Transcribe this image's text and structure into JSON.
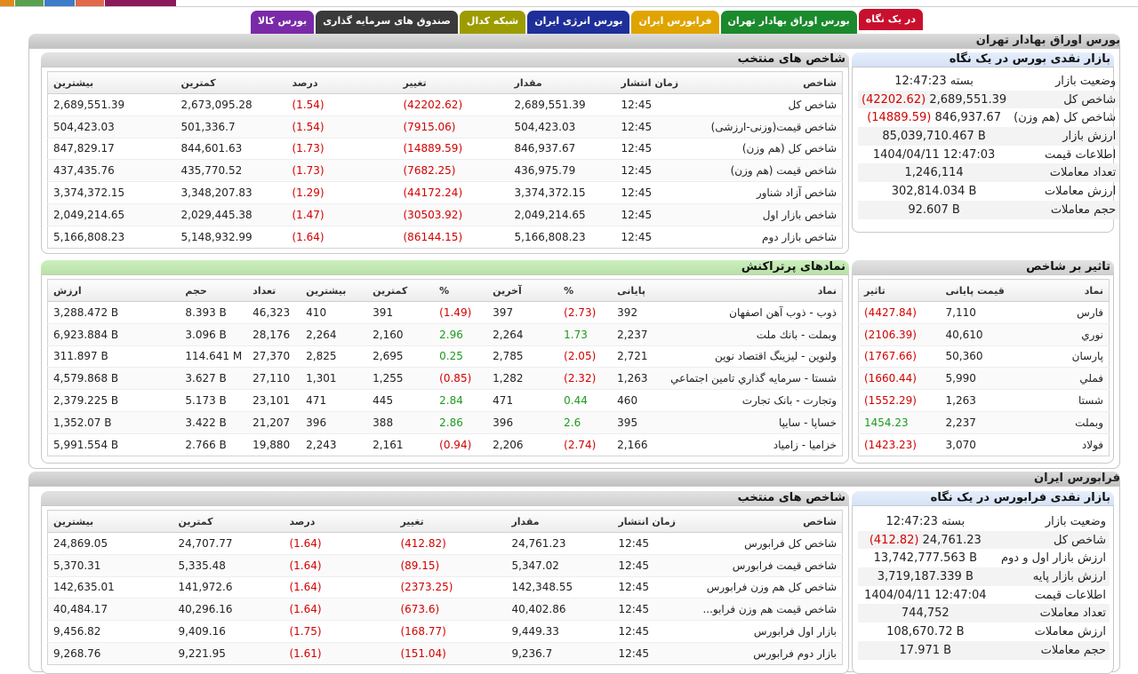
{
  "tabs": [
    {
      "label": "در یک نگاه",
      "color": "#c8102e",
      "active": true
    },
    {
      "label": "بورس اوراق بهادار تهران",
      "color": "#1a8a2c"
    },
    {
      "label": "فرابورس ایران",
      "color": "#e0a400"
    },
    {
      "label": "بورس انرژی ایران",
      "color": "#1f2f9a"
    },
    {
      "label": "شبکه کدال",
      "color": "#9c9c00"
    },
    {
      "label": "صندوق های سرمایه گذاری",
      "color": "#3a3a3a"
    },
    {
      "label": "بورس کالا",
      "color": "#7a2aa8"
    }
  ],
  "tse": {
    "title": "بورس اوراق بهادار تهران",
    "market": {
      "title": "بازار نقدی بورس در یک نگاه",
      "rows": [
        {
          "k": "وضعیت بازار",
          "v": "بسته 12:47:23"
        },
        {
          "k": "شاخص کل",
          "v": "2,689,551.39",
          "c": "(42202.62)"
        },
        {
          "k": "شاخص کل (هم وزن)",
          "v": "846,937.67",
          "c": "(14889.59)"
        },
        {
          "k": "ارزش بازار",
          "v": "85,039,710.467 B"
        },
        {
          "k": "اطلاعات قیمت",
          "v": "1404/04/11 12:47:03"
        },
        {
          "k": "تعداد معاملات",
          "v": "1,246,114"
        },
        {
          "k": "ارزش معاملات",
          "v": "302,814.034 B"
        },
        {
          "k": "حجم معاملات",
          "v": "92.607 B"
        }
      ]
    },
    "indices": {
      "title": "شاخص های منتخب",
      "headers": [
        "شاخص",
        "زمان انتشار",
        "مقدار",
        "تغییر",
        "درصد",
        "کمترین",
        "بیشترین"
      ],
      "rows": [
        [
          "شاخص کل",
          "12:45",
          "2,689,551.39",
          "(42202.62)",
          "(1.54)",
          "2,673,095.28",
          "2,689,551.39"
        ],
        [
          "شاخص قیمت(وزنی-ارزشی)",
          "12:45",
          "504,423.03",
          "(7915.06)",
          "(1.54)",
          "501,336.7",
          "504,423.03"
        ],
        [
          "شاخص کل (هم وزن)",
          "12:45",
          "846,937.67",
          "(14889.59)",
          "(1.73)",
          "844,601.63",
          "847,829.17"
        ],
        [
          "شاخص قیمت (هم وزن)",
          "12:45",
          "436,975.79",
          "(7682.25)",
          "(1.73)",
          "435,770.52",
          "437,435.76"
        ],
        [
          "شاخص آزاد شناور",
          "12:45",
          "3,374,372.15",
          "(44172.24)",
          "(1.29)",
          "3,348,207.83",
          "3,374,372.15"
        ],
        [
          "شاخص بازار اول",
          "12:45",
          "2,049,214.65",
          "(30503.92)",
          "(1.47)",
          "2,029,445.38",
          "2,049,214.65"
        ],
        [
          "شاخص بازار دوم",
          "12:45",
          "5,166,808.23",
          "(86144.15)",
          "(1.64)",
          "5,148,932.99",
          "5,166,808.23"
        ]
      ]
    },
    "impact": {
      "title": "تاثیر بر شاخص",
      "headers": [
        "نماد",
        "قیمت پایانی",
        "تاثیر"
      ],
      "rows": [
        [
          "فارس",
          "7,110",
          "(4427.84)"
        ],
        [
          "نوري",
          "40,610",
          "(2106.39)"
        ],
        [
          "پارسان",
          "50,360",
          "(1767.66)"
        ],
        [
          "فملي",
          "5,990",
          "(1660.44)"
        ],
        [
          "شستا",
          "1,263",
          "(1552.29)"
        ],
        [
          "وبملت",
          "2,237",
          "1454.23"
        ],
        [
          "فولاد",
          "3,070",
          "(1423.23)"
        ]
      ]
    },
    "active": {
      "title": "نمادهای پرتراکنش",
      "headers": [
        "نماد",
        "پایانی",
        "%",
        "آخرین",
        "%",
        "کمترین",
        "بیشترین",
        "تعداد",
        "حجم",
        "ارزش"
      ],
      "rows": [
        [
          "ذوب - ذوب آهن اصفهان",
          "392",
          "(2.73)",
          "397",
          "(1.49)",
          "391",
          "410",
          "46,323",
          "8.393 B",
          "3,288.472 B"
        ],
        [
          "وبملت - بانك ملت",
          "2,237",
          "1.73",
          "2,264",
          "2.96",
          "2,160",
          "2,264",
          "28,176",
          "3.096 B",
          "6,923.884 B"
        ],
        [
          "ولنوین - لیزینگ اقتصاد نوین",
          "2,721",
          "(2.05)",
          "2,785",
          "0.25",
          "2,695",
          "2,825",
          "27,370",
          "114.641 M",
          "311.897 B"
        ],
        [
          "شستا - سرمايه گذاري تامين اجتماعي",
          "1,263",
          "(2.32)",
          "1,282",
          "(0.85)",
          "1,255",
          "1,301",
          "27,110",
          "3.627 B",
          "4,579.868 B"
        ],
        [
          "وتجارت - بانک تجارت",
          "460",
          "0.44",
          "471",
          "2.84",
          "445",
          "471",
          "23,101",
          "5.173 B",
          "2,379.225 B"
        ],
        [
          "خساپا - سايپا",
          "395",
          "2.6",
          "396",
          "2.86",
          "388",
          "396",
          "21,207",
          "3.422 B",
          "1,352.07 B"
        ],
        [
          "خزامیا - زامیاد",
          "2,166",
          "(2.74)",
          "2,206",
          "(0.94)",
          "2,161",
          "2,243",
          "19,880",
          "2.766 B",
          "5,991.554 B"
        ]
      ]
    }
  },
  "ifb": {
    "title": "فرابورس ایران",
    "market": {
      "title": "بازار نقدی فرابورس در یک نگاه",
      "rows": [
        {
          "k": "وضعیت بازار",
          "v": "بسته 12:47:23"
        },
        {
          "k": "شاخص کل",
          "v": "24,761.23",
          "c": "(412.82)"
        },
        {
          "k": "ارزش بازار اول و دوم",
          "v": "13,742,777.563 B"
        },
        {
          "k": "ارزش بازار پایه",
          "v": "3,719,187.339 B"
        },
        {
          "k": "اطلاعات قیمت",
          "v": "1404/04/11 12:47:04"
        },
        {
          "k": "تعداد معاملات",
          "v": "744,752"
        },
        {
          "k": "ارزش معاملات",
          "v": "108,670.72 B"
        },
        {
          "k": "حجم معاملات",
          "v": "17.971 B"
        }
      ]
    },
    "indices": {
      "title": "شاخص های منتخب",
      "headers": [
        "شاخص",
        "زمان انتشار",
        "مقدار",
        "تغییر",
        "درصد",
        "کمترین",
        "بیشترین"
      ],
      "rows": [
        [
          "شاخص كل فرابورس",
          "12:45",
          "24,761.23",
          "(412.82)",
          "(1.64)",
          "24,707.77",
          "24,869.05"
        ],
        [
          "شاخص قیمت فرابورس",
          "12:45",
          "5,347.02",
          "(89.15)",
          "(1.64)",
          "5,335.48",
          "5,370.31"
        ],
        [
          "شاخص کل هم وزن فرابورس",
          "12:45",
          "142,348.55",
          "(2373.25)",
          "(1.64)",
          "141,972.6",
          "142,635.01"
        ],
        [
          "شاخص قیمت هم وزن فرابو...",
          "12:45",
          "40,402.86",
          "(673.6)",
          "(1.64)",
          "40,296.16",
          "40,484.17"
        ],
        [
          "بازار اول فرابورس",
          "12:45",
          "9,449.33",
          "(168.77)",
          "(1.75)",
          "9,409.16",
          "9,456.82"
        ],
        [
          "بازار دوم فرابورس",
          "12:45",
          "9,236.7",
          "(151.04)",
          "(1.61)",
          "9,221.95",
          "9,268.76"
        ]
      ]
    }
  }
}
